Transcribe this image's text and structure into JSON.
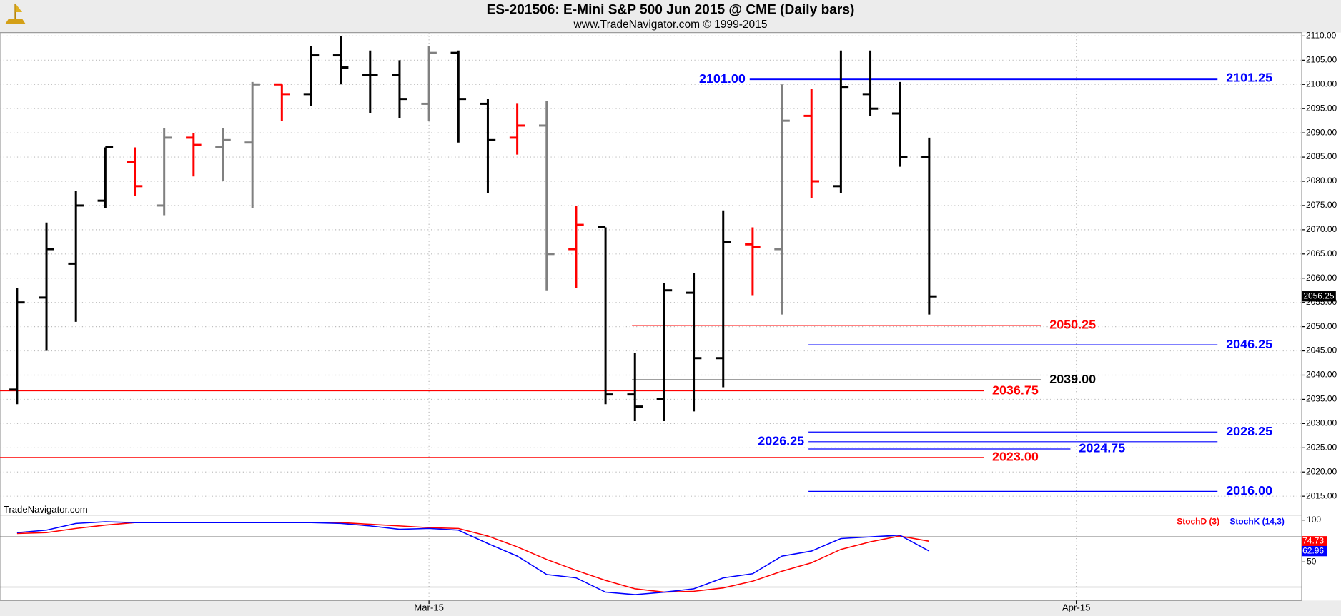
{
  "chart_data": [
    {
      "type": "ohlc",
      "title": "ES-201506:  E-Mini S&P 500 Jun 2015 @ CME  (Daily bars)",
      "subtitle": "www.TradeNavigator.com © 1999-2015",
      "watermark": "TradeNavigator.com",
      "x": [
        0,
        1,
        2,
        3,
        4,
        5,
        6,
        7,
        8,
        9,
        10,
        11,
        12,
        13,
        14,
        15,
        16,
        17,
        18,
        19,
        20,
        21,
        22,
        23,
        24,
        25,
        26,
        27,
        28,
        29,
        30,
        31
      ],
      "open": [
        2037,
        2056,
        2063,
        2076,
        2084,
        2075,
        2089,
        2087,
        2088,
        2100,
        2098,
        2106,
        2102,
        2102,
        2096,
        2106.5,
        2096,
        2089,
        2091.5,
        2066,
        2070.5,
        2036,
        2035,
        2057,
        2043.5,
        2067,
        2066,
        2093.5,
        2079,
        2098,
        2094,
        2085
      ],
      "high": [
        2058,
        2071.5,
        2078,
        2087,
        2087,
        2091,
        2090,
        2091,
        2100.5,
        2100,
        2108,
        2110,
        2107,
        2105,
        2108,
        2107,
        2097,
        2096,
        2096.5,
        2075,
        2070.5,
        2044.5,
        2059,
        2061,
        2074,
        2070.5,
        2100,
        2099,
        2107,
        2107,
        2100.5,
        2089
      ],
      "low": [
        2034,
        2045,
        2051,
        2074.5,
        2077,
        2073,
        2081,
        2080,
        2074.5,
        2092.5,
        2095.5,
        2100,
        2094,
        2093,
        2092.5,
        2088,
        2077.5,
        2085.5,
        2057.5,
        2058,
        2034,
        2030.5,
        2030.5,
        2032.5,
        2037.5,
        2056.5,
        2052.5,
        2076.5,
        2077.5,
        2093.5,
        2083,
        2052.5
      ],
      "close": [
        2055,
        2066,
        2075,
        2087,
        2079,
        2089,
        2087.5,
        2088.5,
        2100,
        2098,
        2106,
        2103.5,
        2102,
        2097,
        2106.5,
        2097,
        2088.5,
        2091.5,
        2065,
        2071,
        2036,
        2033.5,
        2057.5,
        2043.5,
        2067.5,
        2066.5,
        2092.5,
        2080,
        2099.5,
        2095,
        2085,
        2056.25
      ],
      "colors": [
        "#000000",
        "#000000",
        "#000000",
        "#000000",
        "#ff0000",
        "#808080",
        "#ff0000",
        "#808080",
        "#808080",
        "#ff0000",
        "#000000",
        "#000000",
        "#000000",
        "#000000",
        "#808080",
        "#000000",
        "#000000",
        "#ff0000",
        "#808080",
        "#ff0000",
        "#000000",
        "#000000",
        "#000000",
        "#000000",
        "#000000",
        "#ff0000",
        "#808080",
        "#ff0000",
        "#000000",
        "#000000",
        "#000000",
        "#000000"
      ],
      "last_value": {
        "value": 2056.25,
        "label": "2056.25"
      },
      "xlim": [
        -0.58,
        43.66
      ],
      "xticks": [
        {
          "value": 14,
          "label": "Mar-15"
        },
        {
          "value": 36,
          "label": "Apr-15"
        }
      ],
      "ylim": [
        2011.1,
        2110.7
      ],
      "yticks": [
        {
          "value": 2015,
          "label": "2015.00"
        },
        {
          "value": 2020,
          "label": "2020.00"
        },
        {
          "value": 2025,
          "label": "2025.00"
        },
        {
          "value": 2030,
          "label": "2030.00"
        },
        {
          "value": 2035,
          "label": "2035.00"
        },
        {
          "value": 2040,
          "label": "2040.00"
        },
        {
          "value": 2045,
          "label": "2045.00"
        },
        {
          "value": 2050,
          "label": "2050.00"
        },
        {
          "value": 2055,
          "label": "2055.00"
        },
        {
          "value": 2060,
          "label": "2060.00"
        },
        {
          "value": 2065,
          "label": "2065.00"
        },
        {
          "value": 2070,
          "label": "2070.00"
        },
        {
          "value": 2075,
          "label": "2075.00"
        },
        {
          "value": 2080,
          "label": "2080.00"
        },
        {
          "value": 2085,
          "label": "2085.00"
        },
        {
          "value": 2090,
          "label": "2090.00"
        },
        {
          "value": 2095,
          "label": "2095.00"
        },
        {
          "value": 2100,
          "label": "2100.00"
        },
        {
          "value": 2105,
          "label": "2105.00"
        },
        {
          "value": 2110,
          "label": "2110.00"
        }
      ],
      "grid": true,
      "levels": [
        {
          "value": 2101,
          "label": "2101.00",
          "color": "#0000ff",
          "x_start": 24.9,
          "x_end": 40.8,
          "label_side": "left"
        },
        {
          "value": 2101.25,
          "label": "2101.25",
          "color": "#0000ff",
          "x_start": 24.9,
          "x_end": 40.8,
          "label_side": "right"
        },
        {
          "value": 2050.25,
          "label": "2050.25",
          "color": "#ff0000",
          "x_start": 20.9,
          "x_end": 34.8,
          "label_side": "right"
        },
        {
          "value": 2046.25,
          "label": "2046.25",
          "color": "#0000ff",
          "x_start": 26.9,
          "x_end": 40.8,
          "label_side": "right"
        },
        {
          "value": 2039,
          "label": "2039.00",
          "color": "#000000",
          "x_start": 20.9,
          "x_end": 34.8,
          "label_side": "right"
        },
        {
          "value": 2036.75,
          "label": "2036.75",
          "color": "#ff0000",
          "x_start": -0.58,
          "x_end": 32.85,
          "label_side": "right"
        },
        {
          "value": 2028.25,
          "label": "2028.25",
          "color": "#0000ff",
          "x_start": 26.9,
          "x_end": 40.8,
          "label_side": "right"
        },
        {
          "value": 2026.25,
          "label": "2026.25",
          "color": "#0000ff",
          "x_start": 26.9,
          "x_end": 40.8,
          "label_side": "left"
        },
        {
          "value": 2024.75,
          "label": "2024.75",
          "color": "#0000ff",
          "x_start": 26.9,
          "x_end": 35.8,
          "label_side": "right"
        },
        {
          "value": 2023,
          "label": "2023.00",
          "color": "#ff0000",
          "x_start": -0.58,
          "x_end": 32.85,
          "label_side": "right"
        },
        {
          "value": 2016,
          "label": "2016.00",
          "color": "#0000ff",
          "x_start": 26.9,
          "x_end": 40.8,
          "label_side": "right"
        }
      ]
    },
    {
      "type": "line",
      "x": [
        0,
        1,
        2,
        3,
        4,
        5,
        6,
        7,
        8,
        9,
        10,
        11,
        12,
        13,
        14,
        15,
        16,
        17,
        18,
        19,
        20,
        21,
        22,
        23,
        24,
        25,
        26,
        27,
        28,
        29,
        30,
        31
      ],
      "xlim": [
        -0.58,
        43.66
      ],
      "ylim": [
        4,
        106
      ],
      "yticks": [
        50,
        100
      ],
      "ref_lines": [
        80,
        20
      ],
      "series": [
        {
          "name": "StochD (3)",
          "color": "#ff0000",
          "last_label": {
            "value": 74.73,
            "label": "74.73"
          },
          "values": [
            84,
            85,
            90,
            94,
            97,
            97,
            97,
            97,
            97,
            97,
            97,
            97,
            95,
            93,
            91,
            90,
            81,
            68,
            53,
            40,
            28,
            18,
            14,
            15,
            19,
            27,
            39,
            49,
            65,
            74,
            81,
            74.73
          ]
        },
        {
          "name": "StochK (14,3)",
          "color": "#0000ff",
          "last_label": {
            "value": 62.96,
            "label": "62.96"
          },
          "values": [
            85,
            88,
            96,
            98,
            97,
            97,
            97,
            97,
            97,
            97,
            97,
            96,
            93,
            89,
            90,
            88,
            72,
            57,
            35,
            31,
            14,
            11,
            14,
            18,
            31,
            36,
            57,
            63,
            78,
            80,
            82,
            62.96
          ]
        }
      ]
    }
  ]
}
